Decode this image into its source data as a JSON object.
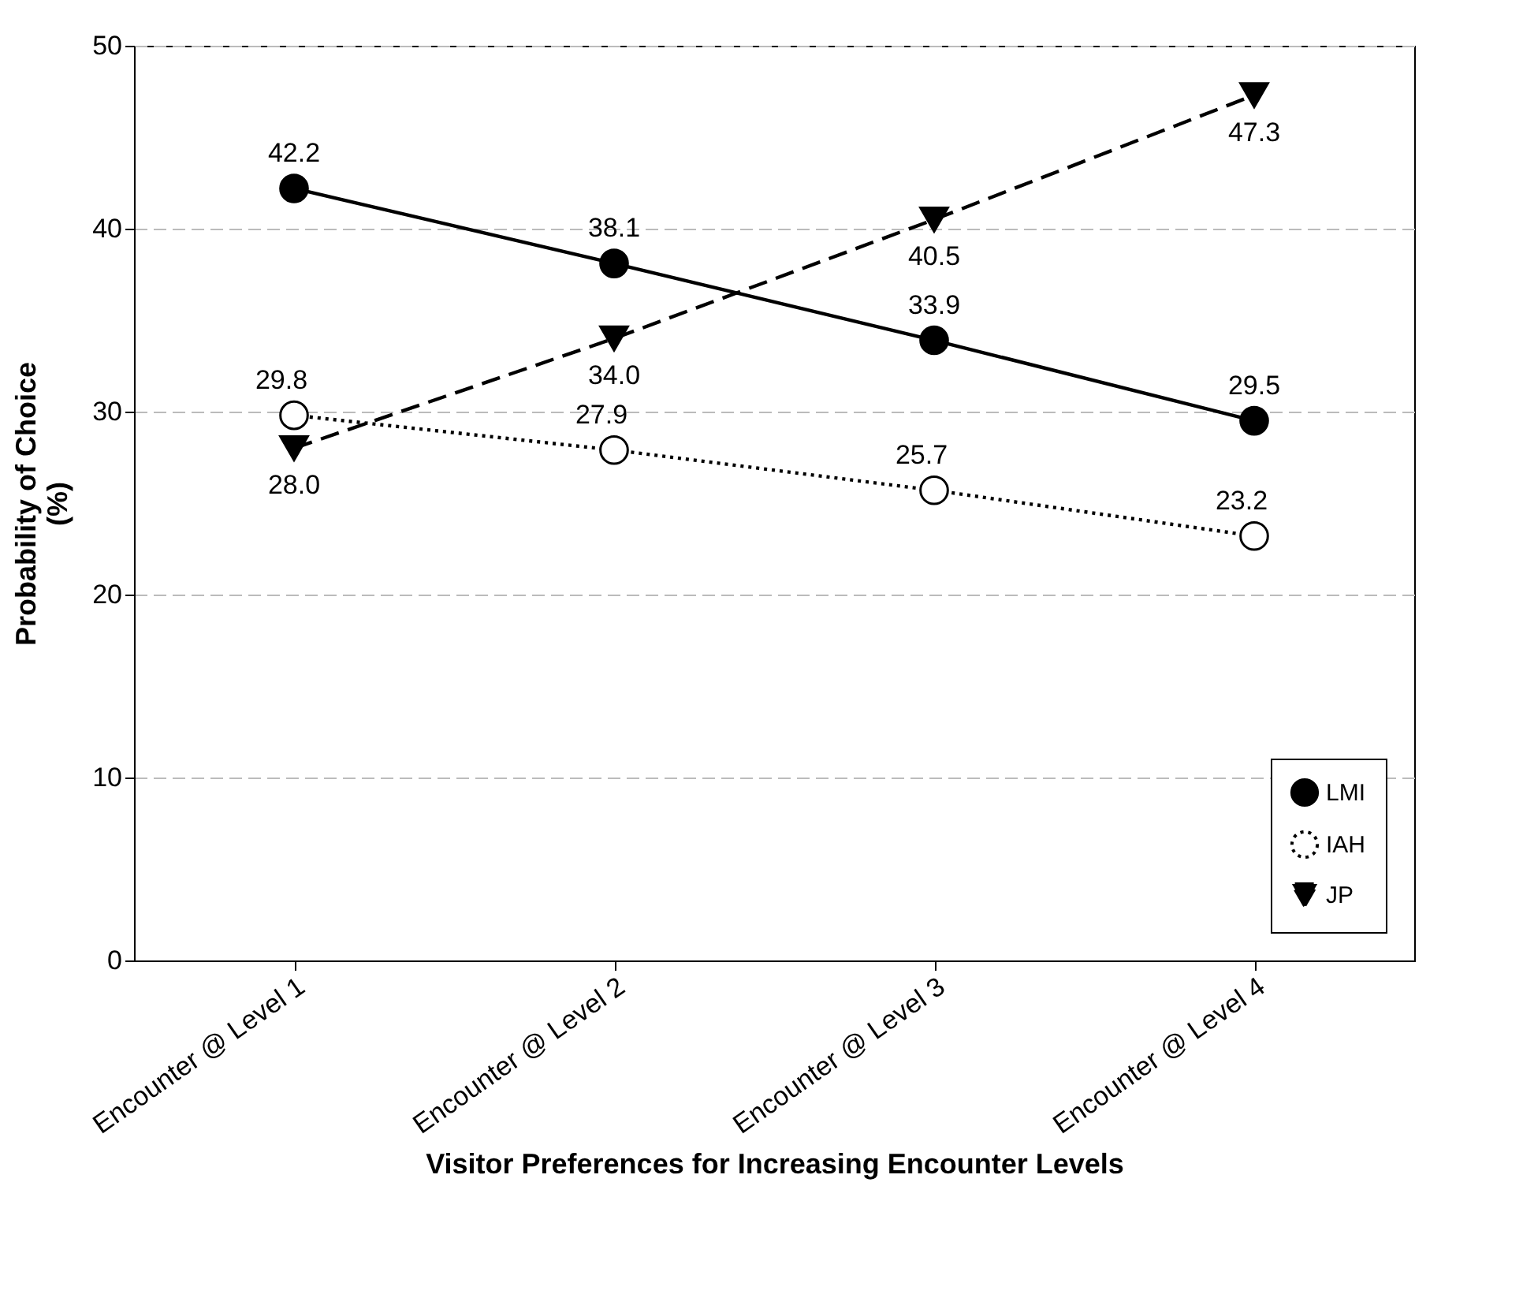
{
  "chart_data": {
    "type": "line",
    "xlabel": "Visitor Preferences for Increasing Encounter Levels",
    "ylabel": "Probability of Choice\n(%)",
    "categories": [
      "Encounter @ Level 1",
      "Encounter @ Level 2",
      "Encounter @ Level 3",
      "Encounter @ Level 4"
    ],
    "series": [
      {
        "name": "LMI",
        "color": "#000000",
        "values": [
          42.2,
          38.1,
          33.9,
          29.5
        ],
        "value_labels": [
          "42.2",
          "38.1",
          "33.9",
          "29.5"
        ],
        "marker": "circle",
        "line_style": "solid"
      },
      {
        "name": "IAH",
        "color": "#000000",
        "values": [
          29.8,
          27.9,
          25.7,
          23.2
        ],
        "value_labels": [
          "29.8",
          "27.9",
          "25.7",
          "23.2"
        ],
        "marker": "circle",
        "line_style": "dotted"
      },
      {
        "name": "JP",
        "color": "#000000",
        "values": [
          28.0,
          34.0,
          40.5,
          47.3
        ],
        "value_labels": [
          "28.0",
          "34.0",
          "40.5",
          "47.3"
        ],
        "marker": "triangle",
        "line_style": "dashed"
      }
    ],
    "ylim": [
      0,
      50
    ],
    "yticks": [
      0,
      10,
      20,
      30,
      40,
      50
    ],
    "grid": "y",
    "legend": "bottom right"
  }
}
